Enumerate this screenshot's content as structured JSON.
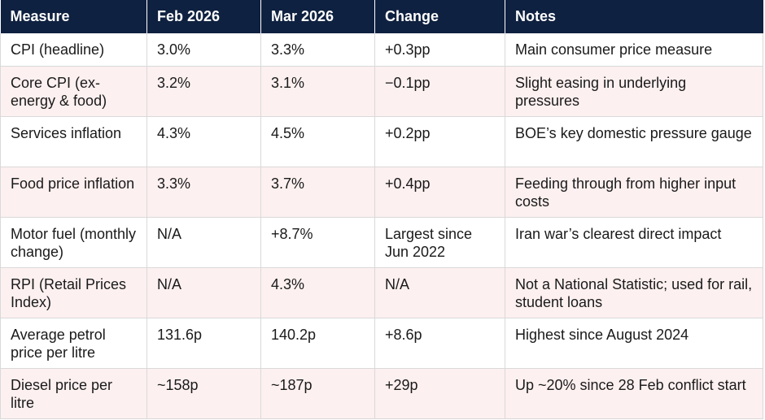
{
  "table": {
    "headers": [
      "Measure",
      "Feb 2026",
      "Mar 2026",
      "Change",
      "Notes"
    ],
    "rows": [
      [
        "CPI (headline)",
        "3.0%",
        "3.3%",
        "+0.3pp",
        "Main consumer price measure"
      ],
      [
        "Core CPI (ex-energy & food)",
        "3.2%",
        "3.1%",
        "−0.1pp",
        "Slight easing in underlying pressures"
      ],
      [
        "Services inflation",
        "4.3%",
        "4.5%",
        "+0.2pp",
        "BOE’s key domestic pressure gauge"
      ],
      [
        "Food price inflation",
        "3.3%",
        "3.7%",
        "+0.4pp",
        "Feeding through from higher input costs"
      ],
      [
        "Motor fuel (monthly change)",
        "N/A",
        "+8.7%",
        "Largest since Jun 2022",
        "Iran war’s clearest direct impact"
      ],
      [
        "RPI (Retail Prices Index)",
        "N/A",
        "4.3%",
        "N/A",
        "Not a National Statistic; used for rail, student loans"
      ],
      [
        "Average petrol price per litre",
        "131.6p",
        "140.2p",
        "+8.6p",
        "Highest since August 2024"
      ],
      [
        "Diesel price per litre",
        "~158p",
        "~187p",
        "+29p",
        "Up ~20% since 28 Feb conflict start"
      ]
    ]
  }
}
